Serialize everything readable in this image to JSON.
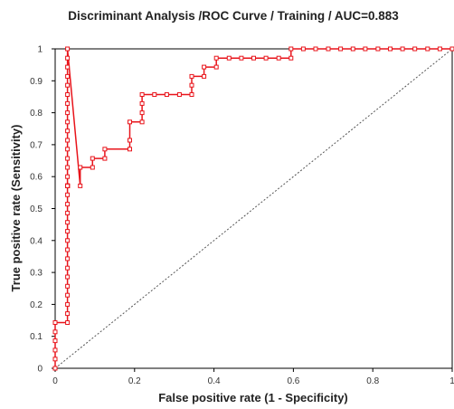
{
  "chart_data": {
    "type": "line",
    "title": "Discriminant Analysis /ROC Curve / Training / AUC=0.883",
    "xlabel": "False positive rate (1 - Specificity)",
    "ylabel": "True positive rate (Sensitivity)",
    "xlim": [
      0,
      1
    ],
    "ylim": [
      0,
      1
    ],
    "x_ticks": [
      "0",
      "0.2",
      "0.4",
      "0.6",
      "0.8",
      "1"
    ],
    "y_ticks": [
      "0",
      "0.1",
      "0.2",
      "0.3",
      "0.4",
      "0.5",
      "0.6",
      "0.7",
      "0.8",
      "0.9",
      "1"
    ],
    "grid": false,
    "legend": "none",
    "colors": {
      "roc": "#e8141b",
      "diagonal": "#555555",
      "frame": "#000000"
    },
    "reference_line": {
      "x": [
        0,
        1
      ],
      "y": [
        0,
        1
      ],
      "style": "dotted"
    },
    "series": [
      {
        "x": [
          0,
          0,
          0,
          0,
          0,
          0,
          0,
          0.031,
          0.031,
          0.031,
          0.031,
          0.031,
          0.031,
          0.031,
          0.031,
          0.031,
          0.031,
          0.031,
          0.031,
          0.031,
          0.031,
          0.031,
          0.031,
          0.031,
          0.031,
          0.031,
          0.031,
          0.031,
          0.031,
          0.031,
          0.031,
          0.031,
          0.031,
          0.031,
          0.031,
          0.031,
          0.031,
          0.031,
          0.031,
          0.031,
          0.031,
          0.031,
          0.031,
          0.031,
          0.031,
          0.031,
          0.063,
          0.063,
          0.094,
          0.094,
          0.125,
          0.125,
          0.188,
          0.188,
          0.188,
          0.219,
          0.219,
          0.219,
          0.219,
          0.25,
          0.281,
          0.313,
          0.344,
          0.344,
          0.344,
          0.375,
          0.375,
          0.406,
          0.406,
          0.438,
          0.469,
          0.5,
          0.531,
          0.563,
          0.594,
          0.594,
          0.625,
          0.656,
          0.688,
          0.719,
          0.75,
          0.781,
          0.813,
          0.844,
          0.875,
          0.906,
          0.938,
          0.969,
          1
        ],
        "y": [
          0,
          0.029,
          0.057,
          0.086,
          0.114,
          0.143,
          0.143,
          0.143,
          0.171,
          0.2,
          0.229,
          0.257,
          0.286,
          0.314,
          0.343,
          0.371,
          0.4,
          0.429,
          0.457,
          0.486,
          0.514,
          0.543,
          0.571,
          0.6,
          0.629,
          0.657,
          0.686,
          0.714,
          0.743,
          0.771,
          0.8,
          0.829,
          0.857,
          0.886,
          0.914,
          0.943,
          0.971,
          1,
          0.571,
          0.571,
          0.571,
          0.571,
          0.571,
          0.571,
          0.571,
          0.571,
          0.571,
          0.629,
          0.629,
          0.657,
          0.657,
          0.686,
          0.686,
          0.714,
          0.771,
          0.771,
          0.8,
          0.829,
          0.857,
          0.857,
          0.857,
          0.857,
          0.857,
          0.886,
          0.914,
          0.914,
          0.943,
          0.943,
          0.971,
          0.971,
          0.971,
          0.971,
          0.971,
          0.971,
          0.971,
          1,
          1,
          1,
          1,
          1,
          1,
          1,
          1,
          1,
          1,
          1,
          1,
          1,
          1
        ]
      }
    ]
  }
}
